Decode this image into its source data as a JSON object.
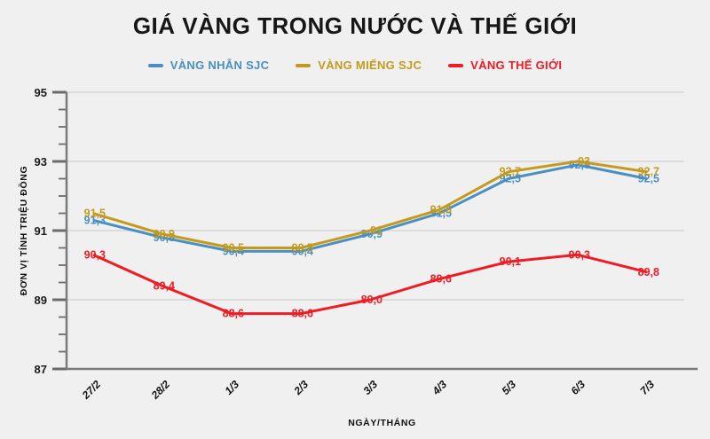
{
  "chart_data": {
    "type": "line",
    "title": "GIÁ VÀNG TRONG NƯỚC VÀ THẾ GIỚI",
    "xlabel": "NGÀY/THÁNG",
    "ylabel": "ĐƠN VỊ TÍNH TRIỆU ĐỒNG",
    "categories": [
      "27/2",
      "28/2",
      "1/3",
      "2/3",
      "3/3",
      "4/3",
      "5/3",
      "6/3",
      "7/3"
    ],
    "ylim": [
      87,
      95
    ],
    "ytick_major": [
      87,
      89,
      91,
      93,
      95
    ],
    "ytick_minor_step": 0.5,
    "grid": "horizontal",
    "legend_position": "top",
    "background": "#f0f0f0",
    "series": [
      {
        "name": "VÀNG NHẪN SJC",
        "color": "#4a8fc2",
        "values": [
          91.3,
          90.8,
          90.4,
          90.4,
          90.9,
          91.5,
          92.5,
          92.9,
          92.5
        ],
        "labels": [
          "91,3",
          "90,8",
          "90,4",
          "90,4",
          "90,9",
          "91,5",
          "92,5",
          "92,9",
          "92,5"
        ]
      },
      {
        "name": "VÀNG MIẾNG SJC",
        "color": "#c49a1d",
        "values": [
          91.5,
          90.9,
          90.5,
          90.5,
          91,
          91.6,
          92.7,
          93,
          92.7
        ],
        "labels": [
          "91,5",
          "90,9",
          "90,5",
          "90,5",
          "91",
          "91,6",
          "92,7",
          "93",
          "92,7"
        ]
      },
      {
        "name": "VÀNG THẾ GIỚI",
        "color": "#ee1c25",
        "values": [
          90.3,
          89.4,
          88.6,
          88.6,
          89,
          89.6,
          90.1,
          90.3,
          89.8
        ],
        "labels": [
          "90,3",
          "89,4",
          "88,6",
          "88,6",
          "89,0",
          "89,6",
          "90,1",
          "90,3",
          "89,8"
        ]
      }
    ]
  }
}
